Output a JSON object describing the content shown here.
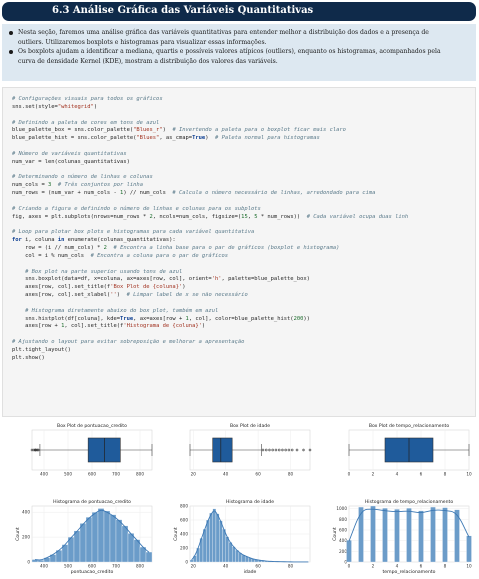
{
  "header": {
    "title": "6.3 Análise Gráfica das Variáveis Quantitativas"
  },
  "intro": {
    "bullets": [
      "Nesta seção, faremos uma análise gráfica das variáveis quantitativas para entender melhor a distribuição dos dados e a presença de",
      "outliers. Utilizaremos boxplots e histogramas para visualizar essas informações.",
      "Os boxplots ajudam a identificar a mediana, quartis e possíveis valores atípicos (outliers), enquanto os histogramas, acompanhados pela",
      "curva de densidade Kernel (KDE), mostram a distribuição dos valores das variáveis."
    ]
  },
  "code": {
    "lines": [
      "# Configurações visuais para todos os gráficos",
      "sns.set(style=\"whitegrid\")",
      "",
      "# Definindo a paleta de cores em tons de azul",
      "blue_palette_box = sns.color_palette(\"Blues_r\")  # Invertendo a paleta para o boxplot ficar mais claro",
      "blue_palette_hist = sns.color_palette(\"Blues\", as_cmap=True)  # Paleta normal para histogramas",
      "",
      "# Número de variáveis quantitativas",
      "num_var = len(colunas_quantitativas)",
      "",
      "# Determinando o número de linhas e colunas",
      "num_cols = 3  # Três conjuntos por linha",
      "num_rows = (num_var + num_cols - 1) // num_cols  # Calcula o número necessário de linhas, arredondado para cima",
      "",
      "# Criando a figura e definindo o número de linhas e colunas para os subplots",
      "fig, axes = plt.subplots(nrows=num_rows * 2, ncols=num_cols, figsize=(15, 5 * num_rows))  # Cada variável ocupa duas linh",
      "",
      "# Loop para plotar box plots e histogramas para cada variável quantitativa",
      "for i, coluna in enumerate(colunas_quantitativas):",
      "    row = (i // num_cols) * 2  # Encontra a linha base para o par de gráficos (boxplot e histograma)",
      "    col = i % num_cols  # Encontra a coluna para o par de gráficos",
      "",
      "    # Box plot na parte superior usando tons de azul",
      "    sns.boxplot(data=df, x=coluna, ax=axes[row, col], orient='h', palette=blue_palette_box)",
      "    axes[row, col].set_title(f'Box Plot de {coluna}')",
      "    axes[row, col].set_xlabel('')  # Limpar label de x se não necessário",
      "",
      "    # Histograma diretamente abaixo do box plot, também em azul",
      "    sns.histplot(df[coluna], kde=True, ax=axes[row + 1, col], color=blue_palette_hist(200))",
      "    axes[row + 1, col].set_title(f'Histograma de {coluna}')",
      "",
      "# Ajustando o layout para evitar sobreposição e melhorar a apresentação",
      "plt.tight_layout()",
      "plt.show()"
    ]
  },
  "chart_data": [
    {
      "type": "box",
      "title": "Box Plot de pontuacao_credito",
      "xlim": [
        350,
        850
      ],
      "ticks": [
        "400",
        "500",
        "600",
        "700",
        "800"
      ],
      "whisker_low": 383,
      "q1": 584,
      "median": 652,
      "q3": 718,
      "whisker_high": 850,
      "outliers": [
        350,
        358,
        363,
        365,
        367,
        373,
        376
      ]
    },
    {
      "type": "box",
      "title": "Box Plot de idade",
      "xlim": [
        18,
        92
      ],
      "ticks": [
        "20",
        "40",
        "60",
        "80"
      ],
      "whisker_low": 18,
      "q1": 32,
      "median": 37,
      "q3": 44,
      "whisker_high": 62,
      "outliers": [
        63,
        65,
        67,
        69,
        71,
        73,
        75,
        77,
        79,
        81,
        84,
        88,
        92
      ]
    },
    {
      "type": "box",
      "title": "Box Plot de tempo_relacionamento",
      "xlim": [
        0,
        10
      ],
      "ticks": [
        "0",
        "2",
        "4",
        "6",
        "8",
        "10"
      ],
      "whisker_low": 0,
      "q1": 3,
      "median": 5,
      "q3": 7,
      "whisker_high": 10,
      "outliers": []
    },
    {
      "type": "histogram",
      "title": "Histograma de pontuacao_credito",
      "xlabel": "pontuacao_credito",
      "ylabel": "Count",
      "xlim": [
        350,
        850
      ],
      "ylim": [
        0,
        450
      ],
      "xticks": [
        "400",
        "500",
        "600",
        "700",
        "800"
      ],
      "yticks": [
        "0",
        "200",
        "400"
      ],
      "bins_start": 350,
      "bin_width": 25,
      "counts": [
        20,
        15,
        35,
        60,
        95,
        140,
        200,
        250,
        310,
        360,
        400,
        430,
        410,
        380,
        340,
        290,
        230,
        180,
        120,
        80,
        230
      ]
    },
    {
      "type": "histogram",
      "title": "Histograma de idade",
      "xlabel": "idade",
      "ylabel": "Count",
      "xlim": [
        18,
        92
      ],
      "ylim": [
        0,
        800
      ],
      "xticks": [
        "20",
        "40",
        "60",
        "80"
      ],
      "yticks": [
        "0",
        "200",
        "400",
        "600",
        "800"
      ],
      "bins_start": 18,
      "bin_width": 2,
      "counts": [
        30,
        90,
        200,
        340,
        470,
        600,
        700,
        760,
        690,
        590,
        470,
        360,
        280,
        220,
        170,
        130,
        100,
        80,
        60,
        45,
        35,
        25,
        20,
        14,
        10,
        8,
        6,
        5,
        4,
        3,
        2,
        2,
        1,
        1,
        1,
        1,
        1
      ]
    },
    {
      "type": "histogram",
      "title": "Histograma de tempo_relacionamento",
      "xlabel": "tempo_relacionamento",
      "ylabel": "Count",
      "xlim": [
        0,
        10
      ],
      "ylim": [
        0,
        1050
      ],
      "xticks": [
        "0",
        "2",
        "4",
        "6",
        "8",
        "10"
      ],
      "yticks": [
        "0",
        "200",
        "400",
        "600",
        "800",
        "1000"
      ],
      "bars_x": [
        0,
        1,
        2,
        3,
        4,
        5,
        6,
        7,
        8,
        9,
        10
      ],
      "counts": [
        410,
        1030,
        1050,
        1010,
        990,
        1010,
        960,
        1030,
        1020,
        980,
        490
      ]
    }
  ],
  "colors": {
    "header_bg": "#0f2a4a",
    "intro_bg": "#dde8f1",
    "box_fill": "#1f5b9b",
    "hist_fill": "#6b9cc9",
    "kde_line": "#3c78b4"
  }
}
